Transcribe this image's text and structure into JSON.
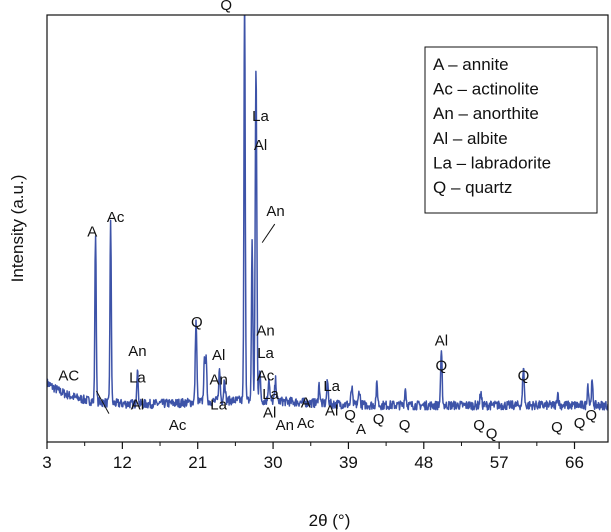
{
  "chart_data": {
    "type": "line",
    "title": "",
    "xlabel": "2θ (°)",
    "ylabel": "Intensity (a.u.)",
    "xlim": [
      3,
      70
    ],
    "ylim": [
      0,
      100
    ],
    "y_ticks_shown": false,
    "grid": false,
    "x_ticks": [
      3,
      12,
      21,
      30,
      39,
      48,
      57,
      66
    ],
    "x_tick_labels": [
      "3",
      "12",
      "21",
      "30",
      "39",
      "48",
      "57",
      "66"
    ],
    "line_color": "#3d53a8",
    "baseline": 5.5,
    "noise": 1.1,
    "peaks": [
      {
        "x": 8.8,
        "y": 41.0
      },
      {
        "x": 10.6,
        "y": 43.5
      },
      {
        "x": 13.8,
        "y": 8.0
      },
      {
        "x": 20.8,
        "y": 19.5
      },
      {
        "x": 21.8,
        "y": 9.0
      },
      {
        "x": 22.0,
        "y": 9.5
      },
      {
        "x": 23.6,
        "y": 7.5
      },
      {
        "x": 24.2,
        "y": 5.5
      },
      {
        "x": 26.6,
        "y": 100.0
      },
      {
        "x": 27.5,
        "y": 39.0
      },
      {
        "x": 27.9,
        "y": 39.5
      },
      {
        "x": 28.0,
        "y": 58.5
      },
      {
        "x": 28.4,
        "y": 7.5
      },
      {
        "x": 29.5,
        "y": 5.5
      },
      {
        "x": 30.3,
        "y": 5.0
      },
      {
        "x": 35.5,
        "y": 4.5
      },
      {
        "x": 36.5,
        "y": 5.5
      },
      {
        "x": 39.4,
        "y": 4.0
      },
      {
        "x": 40.3,
        "y": 3.5
      },
      {
        "x": 42.4,
        "y": 5.0
      },
      {
        "x": 45.8,
        "y": 4.0
      },
      {
        "x": 50.1,
        "y": 12.5
      },
      {
        "x": 54.8,
        "y": 3.0
      },
      {
        "x": 59.9,
        "y": 9.5
      },
      {
        "x": 64.0,
        "y": 3.0
      },
      {
        "x": 67.6,
        "y": 5.0
      },
      {
        "x": 68.1,
        "y": 5.5
      }
    ],
    "annotations": [
      {
        "text": "Q",
        "x": 24.4,
        "y": 101.5
      },
      {
        "text": "La",
        "x": 28.5,
        "y": 74.5
      },
      {
        "text": "Al",
        "x": 28.5,
        "y": 67.5
      },
      {
        "text": "An",
        "x": 30.3,
        "y": 51.5
      },
      {
        "text": "A",
        "x": 8.4,
        "y": 46.5
      },
      {
        "text": "Ac",
        "x": 11.2,
        "y": 50.0
      },
      {
        "text": "AC",
        "x": 5.6,
        "y": 11.5
      },
      {
        "text": "An",
        "x": 13.8,
        "y": 17.5
      },
      {
        "text": "La",
        "x": 13.8,
        "y": 11.0
      },
      {
        "text": "Al",
        "x": 13.8,
        "y": 4.5
      },
      {
        "text": "Ac",
        "x": 18.6,
        "y": -0.5
      },
      {
        "text": "Q",
        "x": 20.9,
        "y": 24.5
      },
      {
        "text": "Al",
        "x": 23.5,
        "y": 16.5
      },
      {
        "text": "An",
        "x": 23.5,
        "y": 10.5
      },
      {
        "text": "La",
        "x": 23.5,
        "y": 4.5
      },
      {
        "text": "An",
        "x": 29.1,
        "y": 22.5
      },
      {
        "text": "La",
        "x": 29.1,
        "y": 17.0
      },
      {
        "text": "Ac",
        "x": 29.1,
        "y": 11.5
      },
      {
        "text": "La",
        "x": 29.7,
        "y": 7.0
      },
      {
        "text": "Al",
        "x": 29.6,
        "y": 2.5
      },
      {
        "text": "An",
        "x": 31.4,
        "y": -0.5
      },
      {
        "text": "A",
        "x": 33.9,
        "y": 5.0
      },
      {
        "text": "Ac",
        "x": 33.9,
        "y": 0.0
      },
      {
        "text": "La",
        "x": 37.0,
        "y": 9.0
      },
      {
        "text": "Al",
        "x": 37.0,
        "y": 3.0
      },
      {
        "text": "Q",
        "x": 39.2,
        "y": 2.0
      },
      {
        "text": "A",
        "x": 40.5,
        "y": -1.5
      },
      {
        "text": "Q",
        "x": 42.6,
        "y": 1.0
      },
      {
        "text": "Q",
        "x": 45.7,
        "y": -0.5
      },
      {
        "text": "Al",
        "x": 50.1,
        "y": 20.0
      },
      {
        "text": "Q",
        "x": 50.1,
        "y": 14.0
      },
      {
        "text": "Q",
        "x": 54.6,
        "y": -0.5
      },
      {
        "text": "Q",
        "x": 56.1,
        "y": -2.5
      },
      {
        "text": "Q",
        "x": 59.9,
        "y": 11.5
      },
      {
        "text": "Q",
        "x": 63.9,
        "y": -1.0
      },
      {
        "text": "Q",
        "x": 66.6,
        "y": 0.0
      },
      {
        "text": "Q",
        "x": 68.0,
        "y": 2.0
      }
    ],
    "leader_lines": [
      {
        "x1": 8.9,
        "y1": 9.0,
        "x2": 10.4,
        "y2": 3.5
      },
      {
        "x1": 28.7,
        "y1": 45.0,
        "x2": 30.2,
        "y2": 49.5
      }
    ],
    "legend": {
      "placement": "top-right",
      "entries": [
        "A – annite",
        "Ac – actinolite",
        "An – anorthite",
        "Al – albite",
        "La – labradorite",
        "Q – quartz"
      ]
    }
  }
}
